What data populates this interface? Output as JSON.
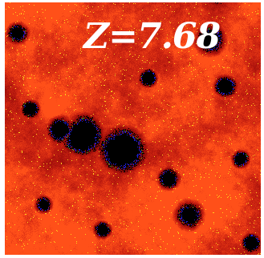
{
  "panel": {
    "redshift_label": "Z=7.68"
  },
  "colors": {
    "ionized_high": "#ff4a1a",
    "ionized_mid": "#e02a12",
    "ionized_low": "#8a1408",
    "ionized_bright": "#ffd21f",
    "neutral_bubble": "#000000",
    "neutral_edge": "#2a2ad8",
    "transition": "#5ab82a"
  }
}
